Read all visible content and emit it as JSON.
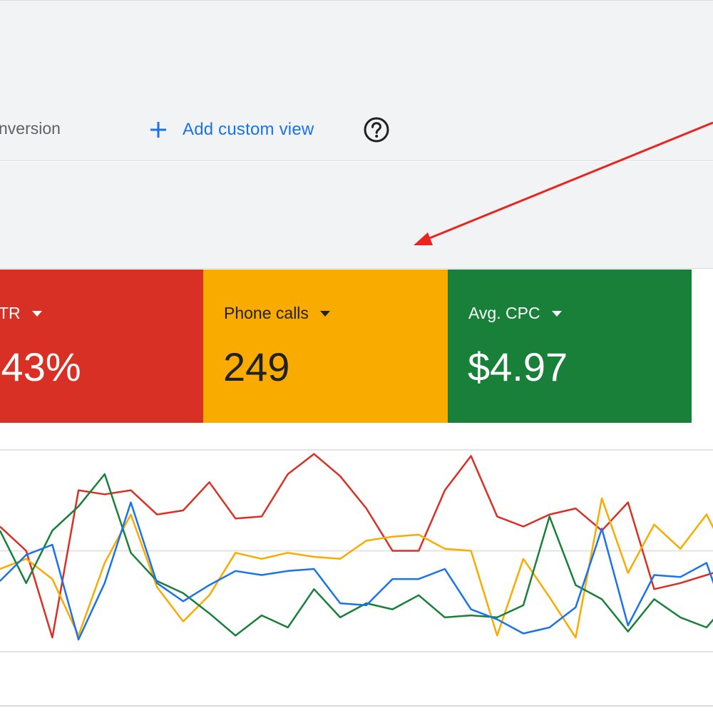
{
  "toolbar": {
    "view_label_partial": "nversion",
    "add_custom_view_label": "Add custom view"
  },
  "icons": {
    "add": "plus-icon",
    "help": "help-circle-icon",
    "dropdown": "caret-down-icon"
  },
  "metrics": [
    {
      "title": "TR",
      "value": ".43%",
      "color": "#d93025"
    },
    {
      "title": "Phone calls",
      "value": "249",
      "color": "#f9ab00"
    },
    {
      "title": "Avg. CPC",
      "value": "$4.97",
      "color": "#188038"
    }
  ],
  "colors": {
    "accent_blue": "#1a73e8",
    "annotation_arrow": "#e8261f",
    "panel_bg": "#f1f3f4"
  },
  "chart_data": {
    "type": "line",
    "x": [
      0,
      1,
      2,
      3,
      4,
      5,
      6,
      7,
      8,
      9,
      10,
      11,
      12,
      13,
      14,
      15,
      16,
      17,
      18,
      19,
      20,
      21,
      22,
      23,
      24,
      25,
      26,
      27,
      28
    ],
    "ylim": [
      0,
      100
    ],
    "grid": true,
    "series": [
      {
        "color": "#d93025",
        "values": [
          62,
          50,
          7,
          80,
          78,
          80,
          68,
          70,
          84,
          66,
          67,
          88,
          98,
          87,
          71,
          50,
          50,
          80,
          97,
          67,
          62,
          68,
          71,
          60,
          74,
          31,
          34,
          38,
          42
        ]
      },
      {
        "color": "#f9ab00",
        "values": [
          41,
          46,
          36,
          8,
          44,
          68,
          32,
          15,
          28,
          49,
          46,
          49,
          47,
          46,
          55,
          57,
          58,
          51,
          50,
          8,
          46,
          27,
          7,
          76,
          39,
          63,
          51,
          68,
          43
        ]
      },
      {
        "color": "#188038",
        "values": [
          60,
          34,
          60,
          72,
          88,
          49,
          35,
          29,
          19,
          8,
          18,
          12,
          31,
          17,
          24,
          21,
          28,
          17,
          18,
          17,
          23,
          67,
          33,
          26,
          10,
          26,
          17,
          12,
          27
        ]
      },
      {
        "color": "#1a73e8",
        "values": [
          35,
          48,
          53,
          6,
          34,
          74,
          34,
          25,
          33,
          40,
          38,
          40,
          41,
          24,
          23,
          36,
          36,
          41,
          21,
          16,
          9,
          12,
          22,
          61,
          13,
          38,
          37,
          44,
          7
        ]
      }
    ]
  }
}
